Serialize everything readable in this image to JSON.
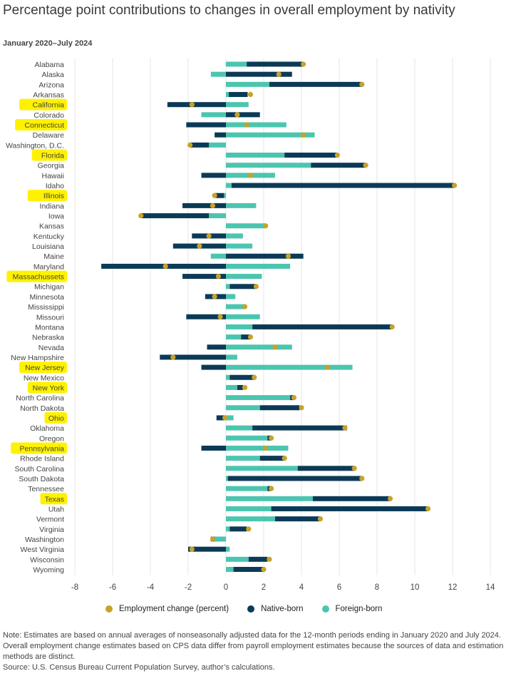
{
  "title": "Percentage point contributions to changes in overall employment by nativity",
  "subtitle": "January 2020–July 2024",
  "colors": {
    "native": "#0b3a56",
    "foreign": "#4cc5b0",
    "dot": "#c9a227",
    "highlight": "#fff200",
    "grid": "#e6e6e6"
  },
  "legend": {
    "employment": "Employment change (percent)",
    "native": "Native-born",
    "foreign": "Foreign-born"
  },
  "notes": {
    "note": "Note: Estimates are based on annual averages of nonseasonally adjusted data for the 12-month periods ending in January 2020 and July 2024. Overall employment change estimates based on CPS data differ from payroll employment estimates because the sources of data and estimation methods are distinct.",
    "source": "Source: U.S. Census Bureau Current Population Survey, author’s calculations."
  },
  "chart_data": {
    "type": "bar",
    "orientation": "horizontal-stacked-with-dots",
    "xlim": [
      -8,
      14
    ],
    "xticks": [
      -8,
      -6,
      -4,
      -2,
      0,
      2,
      4,
      6,
      8,
      10,
      12,
      14
    ],
    "series_names": [
      "Foreign-born",
      "Native-born",
      "Employment change (percent)"
    ],
    "states": [
      {
        "name": "Alabama",
        "foreign": 1.1,
        "native": 3.0,
        "total": 4.1,
        "highlight": false
      },
      {
        "name": "Alaska",
        "foreign": -0.8,
        "native": 3.5,
        "total": 2.8,
        "highlight": false
      },
      {
        "name": "Arizona",
        "foreign": 2.3,
        "native": 4.9,
        "total": 7.2,
        "highlight": false
      },
      {
        "name": "Arkansas",
        "foreign": 0.15,
        "native": 1.0,
        "total": 1.3,
        "highlight": false
      },
      {
        "name": "California",
        "foreign": 1.2,
        "native": -3.1,
        "total": -1.8,
        "highlight": true
      },
      {
        "name": "Colorado",
        "foreign": -1.3,
        "native": 1.8,
        "total": 0.6,
        "highlight": false
      },
      {
        "name": "Connecticut",
        "foreign": 3.2,
        "native": -2.1,
        "total": 1.1,
        "highlight": true
      },
      {
        "name": "Delaware",
        "foreign": 4.7,
        "native": -0.6,
        "total": 4.1,
        "highlight": false
      },
      {
        "name": "Washington, D.C.",
        "foreign": -0.9,
        "native": -1.0,
        "total": -1.9,
        "highlight": false
      },
      {
        "name": "Florida",
        "foreign": 3.1,
        "native": 2.8,
        "total": 5.9,
        "highlight": true
      },
      {
        "name": "Georgia",
        "foreign": 4.5,
        "native": 2.9,
        "total": 7.4,
        "highlight": false
      },
      {
        "name": "Hawaii",
        "foreign": 2.6,
        "native": -1.3,
        "total": 1.3,
        "highlight": false
      },
      {
        "name": "Idaho",
        "foreign": 0.3,
        "native": 11.8,
        "total": 12.1,
        "highlight": false
      },
      {
        "name": "Illinois",
        "foreign": -0.1,
        "native": -0.5,
        "total": -0.6,
        "highlight": true
      },
      {
        "name": "Indiana",
        "foreign": 1.6,
        "native": -2.3,
        "total": -0.7,
        "highlight": false
      },
      {
        "name": "Iowa",
        "foreign": -0.9,
        "native": -3.6,
        "total": -4.5,
        "highlight": false
      },
      {
        "name": "Kansas",
        "foreign": 2.1,
        "native": 0.0,
        "total": 2.1,
        "highlight": false
      },
      {
        "name": "Kentucky",
        "foreign": 0.9,
        "native": -1.8,
        "total": -0.9,
        "highlight": false
      },
      {
        "name": "Louisiana",
        "foreign": 1.4,
        "native": -2.8,
        "total": -1.4,
        "highlight": false
      },
      {
        "name": "Maine",
        "foreign": -0.8,
        "native": 4.1,
        "total": 3.3,
        "highlight": false
      },
      {
        "name": "Maryland",
        "foreign": 3.4,
        "native": -6.6,
        "total": -3.2,
        "highlight": false
      },
      {
        "name": "Massachussets",
        "foreign": 1.9,
        "native": -2.3,
        "total": -0.4,
        "highlight": true
      },
      {
        "name": "Michigan",
        "foreign": 0.2,
        "native": 1.4,
        "total": 1.6,
        "highlight": false
      },
      {
        "name": "Minnesota",
        "foreign": 0.5,
        "native": -1.1,
        "total": -0.6,
        "highlight": false
      },
      {
        "name": "Mississippi",
        "foreign": 1.0,
        "native": 0.0,
        "total": 1.0,
        "highlight": false
      },
      {
        "name": "Missouri",
        "foreign": 1.8,
        "native": -2.1,
        "total": -0.3,
        "highlight": false
      },
      {
        "name": "Montana",
        "foreign": 1.4,
        "native": 7.4,
        "total": 8.8,
        "highlight": false
      },
      {
        "name": "Nebraska",
        "foreign": 0.8,
        "native": 0.5,
        "total": 1.3,
        "highlight": false
      },
      {
        "name": "Nevada",
        "foreign": 3.5,
        "native": -1.0,
        "total": 2.6,
        "highlight": false
      },
      {
        "name": "New Hampshire",
        "foreign": 0.6,
        "native": -3.5,
        "total": -2.8,
        "highlight": false
      },
      {
        "name": "New Jersey",
        "foreign": 6.7,
        "native": -1.3,
        "total": 5.4,
        "highlight": true
      },
      {
        "name": "New Mexico",
        "foreign": 0.2,
        "native": 1.3,
        "total": 1.5,
        "highlight": false
      },
      {
        "name": "New York",
        "foreign": 0.6,
        "native": 0.3,
        "total": 1.0,
        "highlight": true
      },
      {
        "name": "North Carolina",
        "foreign": 3.4,
        "native": 0.2,
        "total": 3.6,
        "highlight": false
      },
      {
        "name": "North Dakota",
        "foreign": 1.8,
        "native": 2.1,
        "total": 4.0,
        "highlight": false
      },
      {
        "name": "Ohio",
        "foreign": 0.4,
        "native": -0.5,
        "total": -0.05,
        "highlight": true
      },
      {
        "name": "Oklahoma",
        "foreign": 1.4,
        "native": 5.0,
        "total": 6.3,
        "highlight": false
      },
      {
        "name": "Oregon",
        "foreign": 2.2,
        "native": 0.2,
        "total": 2.4,
        "highlight": false
      },
      {
        "name": "Pennsylvania",
        "foreign": 3.3,
        "native": -1.3,
        "total": 2.1,
        "highlight": true
      },
      {
        "name": "Rhode Island",
        "foreign": 1.8,
        "native": 1.3,
        "total": 3.1,
        "highlight": false
      },
      {
        "name": "South Carolina",
        "foreign": 3.8,
        "native": 3.0,
        "total": 6.8,
        "highlight": false
      },
      {
        "name": "South Dakota",
        "foreign": 0.1,
        "native": 7.1,
        "total": 7.2,
        "highlight": false
      },
      {
        "name": "Tennessee",
        "foreign": 2.2,
        "native": 0.2,
        "total": 2.4,
        "highlight": false
      },
      {
        "name": "Texas",
        "foreign": 4.6,
        "native": 4.1,
        "total": 8.7,
        "highlight": true
      },
      {
        "name": "Utah",
        "foreign": 2.4,
        "native": 8.3,
        "total": 10.7,
        "highlight": false
      },
      {
        "name": "Vermont",
        "foreign": 2.6,
        "native": 2.4,
        "total": 5.0,
        "highlight": false
      },
      {
        "name": "Virginia",
        "foreign": 0.2,
        "native": 0.9,
        "total": 1.2,
        "highlight": false
      },
      {
        "name": "Washington",
        "foreign": -0.6,
        "native": -0.2,
        "total": -0.7,
        "highlight": false
      },
      {
        "name": "West Virginia",
        "foreign": 0.2,
        "native": -2.0,
        "total": -1.8,
        "highlight": false
      },
      {
        "name": "Wisconsin",
        "foreign": 1.2,
        "native": 1.0,
        "total": 2.3,
        "highlight": false
      },
      {
        "name": "Wyoming",
        "foreign": 0.4,
        "native": 1.6,
        "total": 2.0,
        "highlight": false
      }
    ]
  }
}
